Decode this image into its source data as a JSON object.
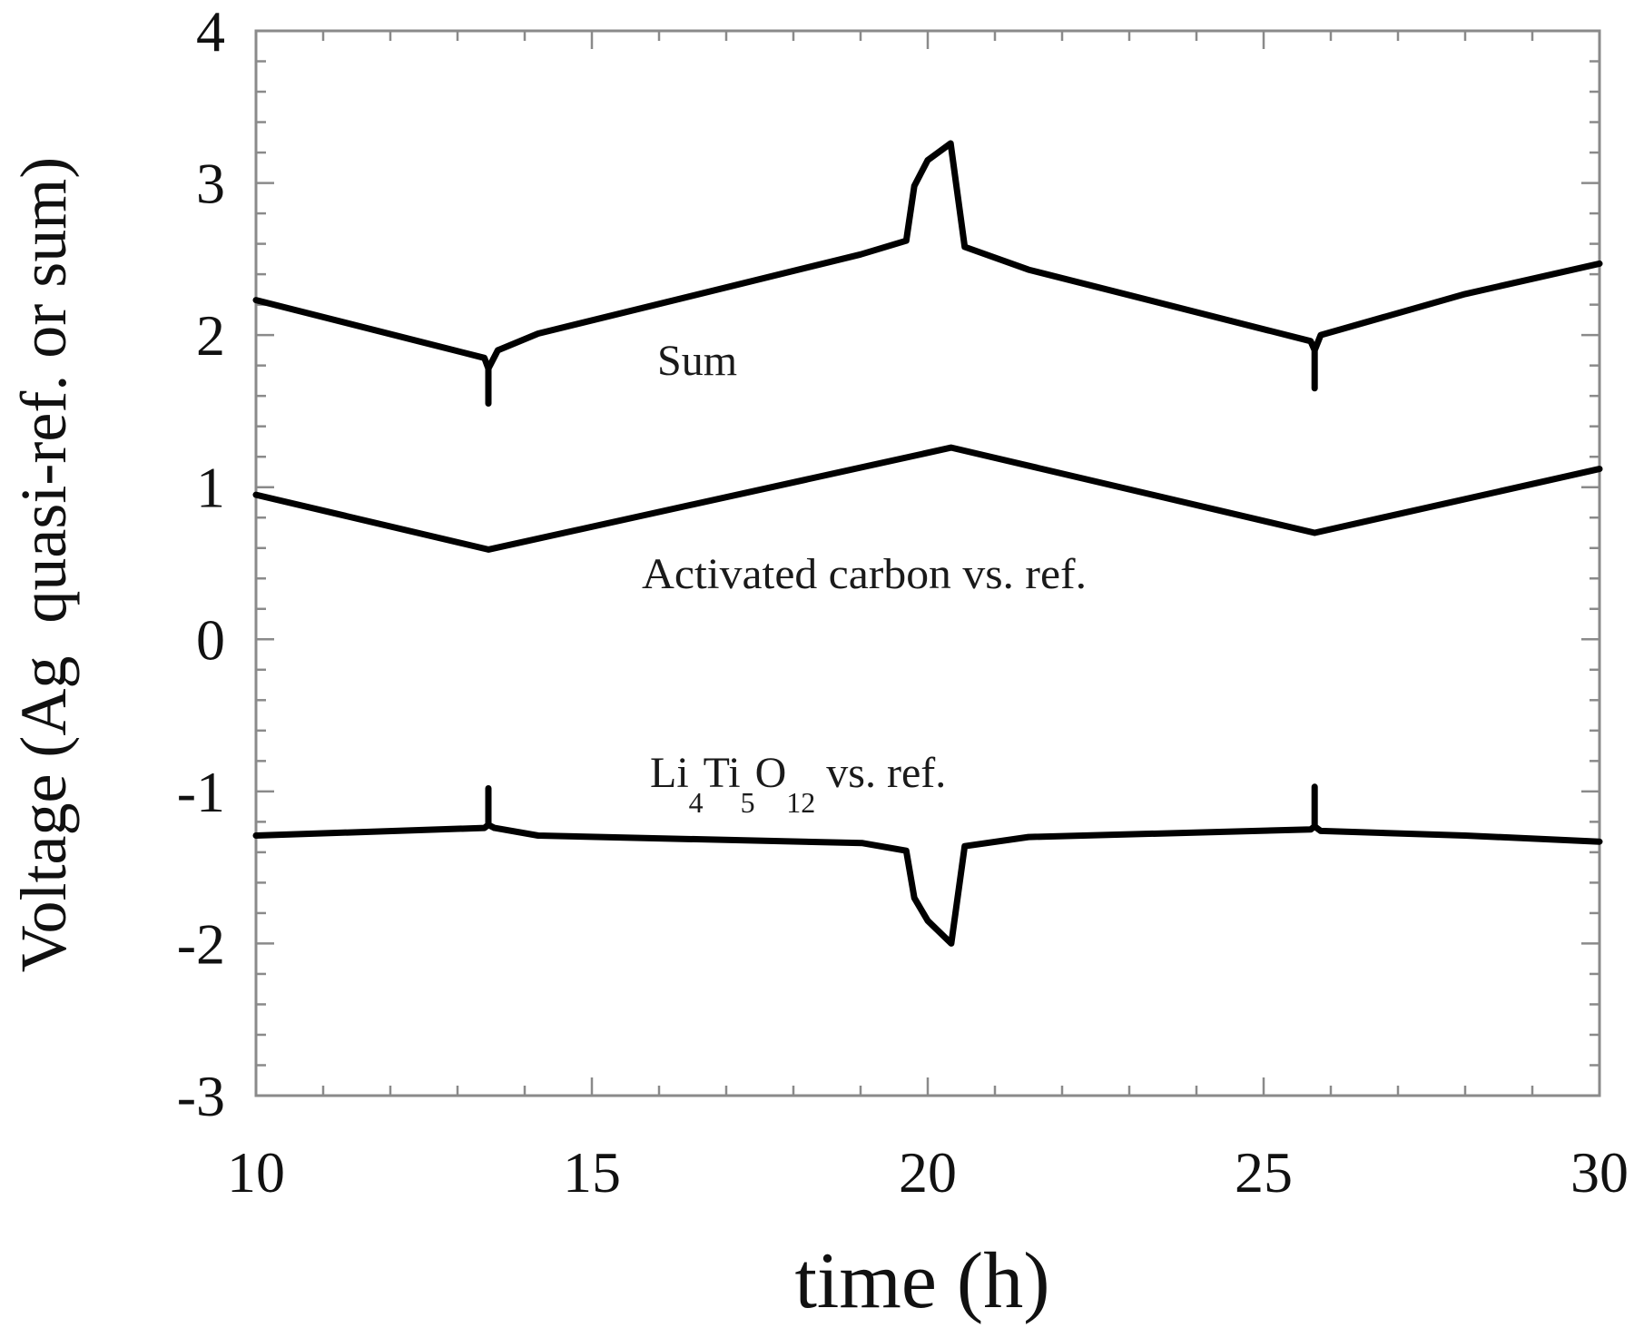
{
  "chart_data": {
    "type": "line",
    "title": "",
    "xlabel": "time (h)",
    "ylabel": "Voltage (Ag  quasi-ref. or sum)",
    "xlim": [
      10,
      30
    ],
    "ylim": [
      -3,
      4
    ],
    "x_ticks": [
      "10",
      "15",
      "20",
      "25",
      "30"
    ],
    "y_ticks": [
      "-3",
      "-2",
      "-1",
      "0",
      "1",
      "2",
      "3",
      "4"
    ],
    "grid": false,
    "legend": "none (inline text annotations)",
    "annotations": [
      {
        "text": "Sum",
        "x": 13.4,
        "y": 1.85
      },
      {
        "text": "Activated carbon vs. ref.",
        "x": 13.3,
        "y": 0.4
      },
      {
        "text": "Li4Ti5O12 vs. ref.",
        "x": 13.3,
        "y": -1.1
      }
    ],
    "series": [
      {
        "name": "Sum",
        "points": [
          [
            10.0,
            2.23
          ],
          [
            13.4,
            1.85
          ],
          [
            13.46,
            1.78
          ],
          [
            13.46,
            1.55
          ],
          [
            13.46,
            1.78
          ],
          [
            13.6,
            1.9
          ],
          [
            14.2,
            2.01
          ],
          [
            19.0,
            2.53
          ],
          [
            19.68,
            2.62
          ],
          [
            19.8,
            2.98
          ],
          [
            20.0,
            3.15
          ],
          [
            20.34,
            3.26
          ],
          [
            20.55,
            2.58
          ],
          [
            21.5,
            2.43
          ],
          [
            25.7,
            1.96
          ],
          [
            25.76,
            1.9
          ],
          [
            25.76,
            1.65
          ],
          [
            25.76,
            1.9
          ],
          [
            25.85,
            2.0
          ],
          [
            28.0,
            2.27
          ],
          [
            30.0,
            2.47
          ]
        ]
      },
      {
        "name": "Activated carbon vs. ref.",
        "points": [
          [
            10.0,
            0.95
          ],
          [
            13.46,
            0.59
          ],
          [
            20.35,
            1.26
          ],
          [
            25.76,
            0.7
          ],
          [
            30.0,
            1.12
          ]
        ]
      },
      {
        "name": "Li4Ti5O12 vs. ref.",
        "points": [
          [
            10.0,
            -1.29
          ],
          [
            13.4,
            -1.24
          ],
          [
            13.46,
            -1.22
          ],
          [
            13.46,
            -0.98
          ],
          [
            13.46,
            -1.22
          ],
          [
            13.55,
            -1.24
          ],
          [
            14.2,
            -1.29
          ],
          [
            19.03,
            -1.34
          ],
          [
            19.68,
            -1.39
          ],
          [
            19.8,
            -1.7
          ],
          [
            20.0,
            -1.85
          ],
          [
            20.35,
            -2.0
          ],
          [
            20.55,
            -1.36
          ],
          [
            21.5,
            -1.3
          ],
          [
            25.7,
            -1.25
          ],
          [
            25.76,
            -1.23
          ],
          [
            25.76,
            -0.97
          ],
          [
            25.76,
            -1.23
          ],
          [
            25.85,
            -1.26
          ],
          [
            28.0,
            -1.29
          ],
          [
            30.0,
            -1.33
          ]
        ]
      }
    ]
  },
  "labels": {
    "sum": "Sum",
    "ac": "Activated carbon vs. ref.",
    "lto_li": "Li",
    "lto_4": "4",
    "lto_ti": "Ti",
    "lto_5": "5",
    "lto_o": "O",
    "lto_12": "12",
    "lto_rest": " vs. ref."
  },
  "style": {
    "line_color": "#000000",
    "frame_color": "#8a8a8a"
  }
}
